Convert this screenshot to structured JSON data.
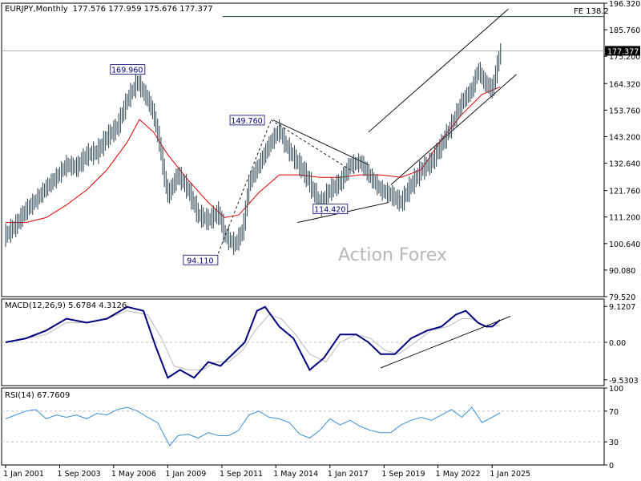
{
  "header": {
    "symbol": "EURJPY,Monthly",
    "ohlc": "177.576 177.959 175.676 177.377"
  },
  "watermark": "Action Forex",
  "colors": {
    "bars": "#3a4f5c",
    "ma": "#e00000",
    "macd_main": "#00007f",
    "macd_signal": "#bbbbbb",
    "rsi": "#3c8fd6",
    "lines": "#000000",
    "grid": "#c0c0c0"
  },
  "chart_data": [
    {
      "type": "line",
      "title": "EURJPY Monthly price (OHLC bars) with moving average",
      "x_ticks": [
        "1 Jan 2001",
        "1 Sep 2003",
        "1 May 2006",
        "1 Jan 2009",
        "1 Sep 2011",
        "1 May 2014",
        "1 Jan 2017",
        "1 Sep 2019",
        "1 May 2022",
        "1 Jan 2025"
      ],
      "y_ticks": [
        196.32,
        185.76,
        175.2,
        164.32,
        153.76,
        143.2,
        132.64,
        121.76,
        111.2,
        100.64,
        90.08,
        79.52
      ],
      "ylim": [
        79.52,
        196.32
      ],
      "last_price": "177.377",
      "fe_label": "FE 138.2",
      "fe_level": 191.0,
      "series": [
        {
          "x": [
            2001.0,
            2001.5,
            2002.0,
            2002.5,
            2003.0,
            2003.5,
            2004.0,
            2004.5,
            2005.0,
            2005.5,
            2006.0,
            2006.5,
            2007.0,
            2007.5,
            2008.0,
            2008.3,
            2008.6,
            2008.8,
            2009.0,
            2009.5,
            2010.0,
            2010.5,
            2011.0,
            2011.5,
            2011.8,
            2012.3,
            2012.7,
            2013.0,
            2013.5,
            2014.0,
            2014.5,
            2014.8,
            2015.3,
            2015.8,
            2016.2,
            2016.5,
            2017.0,
            2017.5,
            2018.0,
            2018.5,
            2019.0,
            2019.5,
            2020.0,
            2020.5,
            2021.0,
            2021.5,
            2022.0,
            2022.5,
            2023.0,
            2023.5,
            2024.0,
            2024.3,
            2024.6,
            2025.0,
            2025.4
          ],
          "close": [
            104,
            108,
            114,
            118,
            123,
            127,
            132,
            131,
            136,
            137,
            143,
            147,
            158,
            165,
            158,
            152,
            140,
            128,
            120,
            128,
            122,
            112,
            110,
            113,
            104,
            100,
            106,
            125,
            132,
            140,
            146,
            140,
            134,
            128,
            121,
            116,
            122,
            125,
            132,
            133,
            127,
            122,
            120,
            117,
            124,
            130,
            133,
            140,
            148,
            157,
            162,
            170,
            165,
            162,
            177.4
          ]
        },
        {
          "name": "MA",
          "x": [
            2001.0,
            2002.0,
            2003.0,
            2004.0,
            2005.0,
            2006.0,
            2007.0,
            2007.6,
            2008.3,
            2009.0,
            2010.0,
            2011.0,
            2011.8,
            2012.5,
            2013.5,
            2014.5,
            2015.5,
            2016.5,
            2017.5,
            2018.5,
            2019.5,
            2020.5,
            2021.5,
            2022.5,
            2023.5,
            2024.5,
            2025.4
          ],
          "values": [
            109,
            109,
            111,
            116,
            122,
            130,
            141,
            150,
            145,
            136,
            126,
            117,
            111,
            112,
            121,
            128,
            128,
            127,
            127,
            128,
            128,
            127,
            130,
            142,
            152,
            160,
            163
          ]
        }
      ],
      "annotations": [
        "169.960",
        "149.760",
        "114.420",
        "94.110"
      ]
    },
    {
      "type": "line",
      "title": "MACD(12,26,9) 5.6784 4.3126",
      "y_ticks": [
        "9.1207",
        "0.00",
        "-9.5303"
      ],
      "ylim": [
        -11.0,
        11.0
      ],
      "series": [
        {
          "name": "MACD",
          "x": [
            2001.0,
            2002.0,
            2003.0,
            2004.0,
            2005.0,
            2006.0,
            2007.0,
            2007.8,
            2008.4,
            2009.0,
            2009.6,
            2010.3,
            2011.0,
            2011.6,
            2012.2,
            2012.8,
            2013.4,
            2013.8,
            2014.5,
            2015.2,
            2016.0,
            2016.7,
            2017.5,
            2018.3,
            2018.9,
            2019.5,
            2020.2,
            2021.0,
            2021.8,
            2022.5,
            2023.2,
            2023.7,
            2024.3,
            2024.7,
            2025.0,
            2025.4
          ],
          "values": [
            0,
            1,
            3,
            6,
            5,
            6,
            9,
            8,
            -1,
            -9,
            -7,
            -9,
            -5,
            -6,
            -3,
            0,
            8,
            9,
            4,
            1,
            -7,
            -4,
            2,
            2,
            0,
            -3,
            -3,
            1,
            3,
            4,
            7,
            8,
            5,
            4,
            4,
            5.7
          ]
        },
        {
          "name": "Signal",
          "x": [
            2001.0,
            2002.0,
            2003.0,
            2004.0,
            2005.0,
            2006.0,
            2007.0,
            2008.0,
            2008.7,
            2009.3,
            2010.0,
            2010.7,
            2011.4,
            2012.0,
            2012.7,
            2013.3,
            2014.0,
            2014.6,
            2015.3,
            2016.0,
            2016.8,
            2017.5,
            2018.3,
            2019.0,
            2019.7,
            2020.4,
            2021.2,
            2022.0,
            2022.8,
            2023.5,
            2024.0,
            2024.6,
            2025.4
          ],
          "values": [
            0,
            1,
            2,
            5,
            5,
            6,
            8,
            7,
            1,
            -6,
            -7,
            -7,
            -5,
            -5,
            -2,
            3,
            7,
            6,
            2,
            -3,
            -5,
            0,
            2,
            1,
            -2,
            -3,
            0,
            3,
            4,
            6,
            6,
            4,
            4.3
          ]
        }
      ]
    },
    {
      "type": "line",
      "title": "RSI(14) 67.7609",
      "y_ticks": [
        "100",
        "70",
        "30",
        "0"
      ],
      "ylim": [
        0,
        100
      ],
      "levels": [
        70,
        30
      ],
      "series": [
        {
          "name": "RSI",
          "x": [
            2001.0,
            2001.5,
            2002.0,
            2002.5,
            2003.0,
            2003.5,
            2004.0,
            2004.5,
            2005.0,
            2005.5,
            2006.0,
            2006.5,
            2007.0,
            2007.5,
            2008.0,
            2008.5,
            2008.8,
            2009.1,
            2009.5,
            2010.0,
            2010.5,
            2011.0,
            2011.5,
            2012.0,
            2012.5,
            2013.0,
            2013.5,
            2014.0,
            2014.5,
            2015.0,
            2015.5,
            2016.0,
            2016.5,
            2017.0,
            2017.5,
            2018.0,
            2018.5,
            2019.0,
            2019.5,
            2020.0,
            2020.5,
            2021.0,
            2021.5,
            2022.0,
            2022.5,
            2023.0,
            2023.5,
            2024.0,
            2024.5,
            2025.0,
            2025.4
          ],
          "values": [
            60,
            65,
            70,
            72,
            60,
            65,
            62,
            65,
            60,
            67,
            65,
            72,
            75,
            70,
            62,
            55,
            40,
            25,
            38,
            40,
            35,
            42,
            38,
            38,
            45,
            65,
            70,
            62,
            60,
            55,
            40,
            35,
            45,
            60,
            52,
            58,
            50,
            45,
            42,
            42,
            52,
            58,
            62,
            58,
            65,
            72,
            62,
            75,
            55,
            62,
            67.8
          ]
        }
      ]
    }
  ],
  "x_axis_labels": [
    "1 Jan 2001",
    "1 Sep 2003",
    "1 May 2006",
    "1 Jan 2009",
    "1 Sep 2011",
    "1 May 2014",
    "1 Jan 2017",
    "1 Sep 2019",
    "1 May 2022",
    "1 Jan 2025"
  ]
}
